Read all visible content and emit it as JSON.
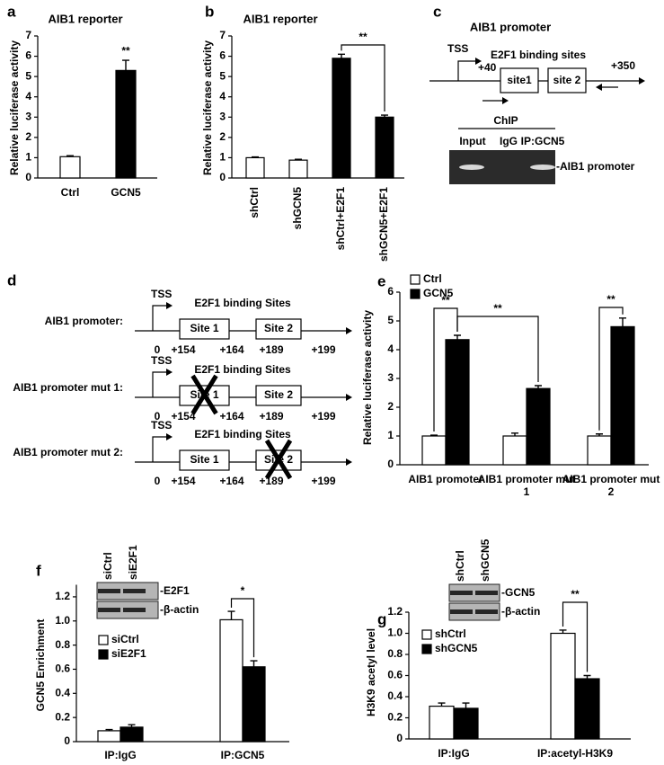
{
  "chart_data": [
    {
      "type": "bar",
      "panel": "a",
      "title": "AIB1 reporter",
      "y_label": "Relative luciferase activity",
      "categories": [
        "Ctrl",
        "GCN5"
      ],
      "values": [
        1.05,
        5.3
      ],
      "errors": [
        0.05,
        0.5
      ],
      "colors": [
        "#ffffff",
        "#000000"
      ],
      "ylim": [
        0,
        7
      ],
      "yticks": [
        0,
        1,
        2,
        3,
        4,
        5,
        6,
        7
      ],
      "annotations": [
        "**"
      ]
    },
    {
      "type": "bar",
      "panel": "b",
      "title": "AIB1 reporter",
      "y_label": "Relative luciferase activity",
      "categories": [
        "shCtrl",
        "shGCN5",
        "shCtrl+E2F1",
        "shGCN5+E2F1"
      ],
      "values": [
        1.0,
        0.88,
        5.9,
        3.0
      ],
      "errors": [
        0.04,
        0.04,
        0.2,
        0.1
      ],
      "colors": [
        "#ffffff",
        "#ffffff",
        "#000000",
        "#000000"
      ],
      "ylim": [
        0,
        7
      ],
      "yticks": [
        0,
        1,
        2,
        3,
        4,
        5,
        6,
        7
      ],
      "annotations": [
        "**"
      ]
    },
    {
      "type": "grouped_bar",
      "panel": "e",
      "y_label": "Relative luciferase activity",
      "categories": [
        "AIB1 promoter",
        "AIB1 promoter mut 1",
        "AIB1 promoter mut 2"
      ],
      "series": [
        {
          "name": "Ctrl",
          "color": "#ffffff",
          "values": [
            1.0,
            1.0,
            1.0
          ],
          "errors": [
            0.03,
            0.1,
            0.07
          ]
        },
        {
          "name": "GCN5",
          "color": "#000000",
          "values": [
            4.35,
            2.65,
            4.8
          ],
          "errors": [
            0.15,
            0.1,
            0.3
          ]
        }
      ],
      "ylim": [
        0,
        6
      ],
      "yticks": [
        0,
        1,
        2,
        3,
        4,
        5,
        6
      ],
      "annotations": [
        "**",
        "**",
        "**"
      ]
    },
    {
      "type": "grouped_bar",
      "panel": "f",
      "y_label": "GCN5 Enrichment",
      "categories": [
        "IP:IgG",
        "IP:GCN5"
      ],
      "series": [
        {
          "name": "siCtrl",
          "color": "#ffffff",
          "values": [
            0.09,
            1.01
          ],
          "errors": [
            0.01,
            0.07
          ]
        },
        {
          "name": "siE2F1",
          "color": "#000000",
          "values": [
            0.12,
            0.62
          ],
          "errors": [
            0.02,
            0.05
          ]
        }
      ],
      "ylim": [
        0,
        1.3
      ],
      "yticks": [
        0,
        0.2,
        0.4,
        0.6,
        0.8,
        {
          "value": 1,
          "label": "1.0"
        },
        1.2
      ],
      "annotations": [
        "*"
      ],
      "blot": {
        "lanes": [
          "siCtrl",
          "siE2F1"
        ],
        "bands": [
          "-E2F1",
          "-β-actin"
        ]
      }
    },
    {
      "type": "grouped_bar",
      "panel": "g",
      "y_label": "H3K9 acetyl level",
      "categories": [
        "IP:IgG",
        "IP:acetyl-H3K9"
      ],
      "series": [
        {
          "name": "shCtrl",
          "color": "#ffffff",
          "values": [
            0.31,
            1.0
          ],
          "errors": [
            0.03,
            0.03
          ]
        },
        {
          "name": "shGCN5",
          "color": "#000000",
          "values": [
            0.29,
            0.57
          ],
          "errors": [
            0.05,
            0.03
          ]
        }
      ],
      "ylim": [
        0,
        1.2
      ],
      "yticks": [
        0,
        0.2,
        0.4,
        0.6,
        0.8,
        {
          "value": 1,
          "label": "1.0"
        },
        1.2
      ],
      "annotations": [
        "**"
      ],
      "blot": {
        "lanes": [
          "shCtrl",
          "shGCN5"
        ],
        "bands": [
          "-GCN5",
          "-β-actin"
        ]
      }
    }
  ],
  "diagrams": {
    "c": {
      "panel": "c",
      "title": "AIB1 promoter",
      "tss": "TSS",
      "start": "+40",
      "sites_label": "E2F1 binding sites",
      "sites": [
        "site1",
        "site 2"
      ],
      "end": "+350",
      "chip": {
        "title": "ChIP",
        "lanes": [
          "Input",
          "IgG",
          "IP:GCN5"
        ],
        "band": "-AIB1 promoter"
      }
    },
    "d": {
      "panel": "d",
      "rows": [
        {
          "label": "AIB1 promoter:",
          "tss": "TSS",
          "sites_label": "E2F1 binding Sites",
          "sites": [
            "Site 1",
            "Site 2"
          ],
          "positions": [
            "0",
            "+154",
            "+164",
            "+189",
            "+199"
          ]
        },
        {
          "label": "AIB1 promoter mut 1:",
          "tss": "TSS",
          "sites_label": "E2F1 binding Sites",
          "sites": [
            "Site 1",
            "Site 2"
          ],
          "positions": [
            "0",
            "+154",
            "+164",
            "+189",
            "+199"
          ]
        },
        {
          "label": "AIB1 promoter mut 2:",
          "tss": "TSS",
          "sites_label": "E2F1 binding Sites",
          "sites": [
            "Site 1",
            "Site 2"
          ],
          "positions": [
            "0",
            "+154",
            "+164",
            "+189",
            "+199"
          ]
        }
      ]
    }
  }
}
